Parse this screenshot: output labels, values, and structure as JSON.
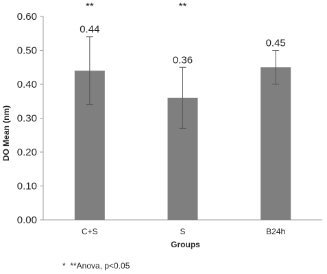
{
  "chart_data": {
    "type": "bar",
    "title": "",
    "xlabel": "Groups",
    "ylabel": "DO Mean (nm)",
    "categories": [
      "C+S",
      "S",
      "B24h"
    ],
    "values": [
      0.44,
      0.36,
      0.45
    ],
    "value_labels": [
      "0.44",
      "0.36",
      "0.45"
    ],
    "error_bars": [
      {
        "low": 0.34,
        "high": 0.54
      },
      {
        "low": 0.27,
        "high": 0.45
      },
      {
        "low": 0.4,
        "high": 0.5
      }
    ],
    "significance_marks": [
      "**",
      "**",
      ""
    ],
    "ylim": [
      0,
      0.6
    ],
    "yticks": [
      0,
      0.1,
      0.2,
      0.3,
      0.4,
      0.5,
      0.6
    ],
    "ytick_labels": [
      "0.00",
      "0.10",
      "0.20",
      "0.30",
      "0.40",
      "0.50",
      "0.60"
    ],
    "grid": false,
    "bar_color": "#7f7f7f",
    "axis_color": "#999999",
    "error_bar_color": "#555555"
  },
  "footnote": "*  **Anova, p<0.05"
}
